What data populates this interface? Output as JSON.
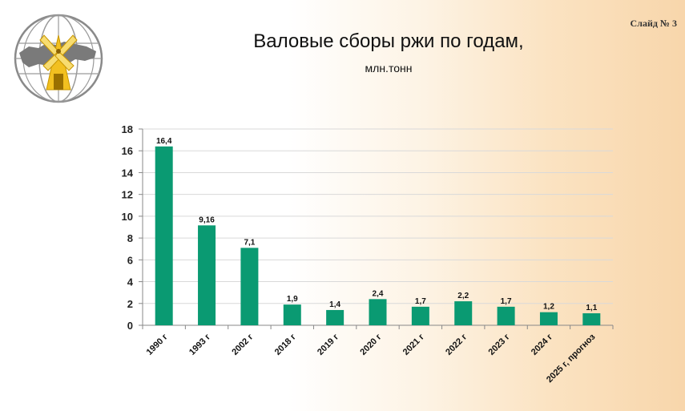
{
  "slide": {
    "number_label": "Слайд № 3",
    "logo_icon": "windmill-globe-icon"
  },
  "chart_data": {
    "type": "bar",
    "title": "Валовые сборы ржи по годам,",
    "subtitle": "млн.тонн",
    "categories": [
      "1990 г",
      "1993 г",
      "2002 г",
      "2018 г",
      "2019 г",
      "2020 г",
      "2021 г",
      "2022 г",
      "2023 г",
      "2024 г",
      "2025 г, прогноз"
    ],
    "values": [
      16.4,
      9.16,
      7.1,
      1.9,
      1.4,
      2.4,
      1.7,
      2.2,
      1.7,
      1.2,
      1.1
    ],
    "value_labels": [
      "16,4",
      "9,16",
      "7,1",
      "1,9",
      "1,4",
      "2,4",
      "1,7",
      "2,2",
      "1,7",
      "1,2",
      "1,1"
    ],
    "ylim": [
      0,
      18
    ],
    "yticks": [
      0,
      2,
      4,
      6,
      8,
      10,
      12,
      14,
      16,
      18
    ],
    "xlabel": "",
    "ylabel": "",
    "grid": true,
    "legend": "none",
    "bar_color": "#0a9a72",
    "grid_color": "#d9d9d9"
  }
}
